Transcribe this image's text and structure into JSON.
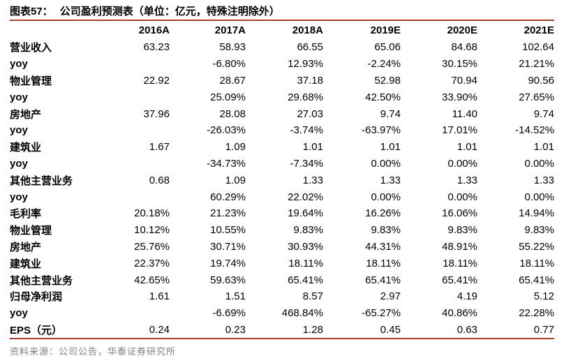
{
  "figure": {
    "label": "图表57：",
    "caption": "公司盈利预测表（单位：亿元，特殊注明除外）",
    "source": "资料来源：公司公告，华泰证券研究所"
  },
  "colors": {
    "rule": "#a8402c",
    "text": "#000000",
    "source_text": "#7f7f7f"
  },
  "chart_data": {
    "type": "table",
    "columns": [
      "",
      "2016A",
      "2017A",
      "2018A",
      "2019E",
      "2020E",
      "2021E"
    ],
    "rows": [
      {
        "label": "营业收入",
        "values": [
          "63.23",
          "58.93",
          "66.55",
          "65.06",
          "84.68",
          "102.64"
        ]
      },
      {
        "label": "yoy",
        "values": [
          "",
          "-6.80%",
          "12.93%",
          "-2.24%",
          "30.15%",
          "21.21%"
        ]
      },
      {
        "label": "物业管理",
        "values": [
          "22.92",
          "28.67",
          "37.18",
          "52.98",
          "70.94",
          "90.56"
        ]
      },
      {
        "label": "yoy",
        "values": [
          "",
          "25.09%",
          "29.68%",
          "42.50%",
          "33.90%",
          "27.65%"
        ]
      },
      {
        "label": "房地产",
        "values": [
          "37.96",
          "28.08",
          "27.03",
          "9.74",
          "11.40",
          "9.74"
        ]
      },
      {
        "label": "yoy",
        "values": [
          "",
          "-26.03%",
          "-3.74%",
          "-63.97%",
          "17.01%",
          "-14.52%"
        ]
      },
      {
        "label": "建筑业",
        "values": [
          "1.67",
          "1.09",
          "1.01",
          "1.01",
          "1.01",
          "1.01"
        ]
      },
      {
        "label": "yoy",
        "values": [
          "",
          "-34.73%",
          "-7.34%",
          "0.00%",
          "0.00%",
          "0.00%"
        ]
      },
      {
        "label": "其他主营业务",
        "values": [
          "0.68",
          "1.09",
          "1.33",
          "1.33",
          "1.33",
          "1.33"
        ]
      },
      {
        "label": "yoy",
        "values": [
          "",
          "60.29%",
          "22.02%",
          "0.00%",
          "0.00%",
          "0.00%"
        ]
      },
      {
        "label": "毛利率",
        "values": [
          "20.18%",
          "21.23%",
          "19.64%",
          "16.26%",
          "16.06%",
          "14.94%"
        ]
      },
      {
        "label": "物业管理",
        "values": [
          "10.12%",
          "10.55%",
          "9.83%",
          "9.83%",
          "9.83%",
          "9.83%"
        ]
      },
      {
        "label": "房地产",
        "values": [
          "25.76%",
          "30.71%",
          "30.93%",
          "44.31%",
          "48.91%",
          "55.22%"
        ]
      },
      {
        "label": "建筑业",
        "values": [
          "22.37%",
          "19.74%",
          "18.11%",
          "18.11%",
          "18.11%",
          "18.11%"
        ]
      },
      {
        "label": "其他主营业务",
        "values": [
          "42.65%",
          "59.63%",
          "65.41%",
          "65.41%",
          "65.41%",
          "65.41%"
        ]
      },
      {
        "label": "归母净利润",
        "values": [
          "1.61",
          "1.51",
          "8.57",
          "2.97",
          "4.19",
          "5.12"
        ]
      },
      {
        "label": "yoy",
        "values": [
          "",
          "-6.69%",
          "468.84%",
          "-65.27%",
          "40.86%",
          "22.28%"
        ]
      },
      {
        "label": "EPS（元）",
        "values": [
          "0.24",
          "0.23",
          "1.28",
          "0.45",
          "0.63",
          "0.77"
        ]
      }
    ]
  }
}
